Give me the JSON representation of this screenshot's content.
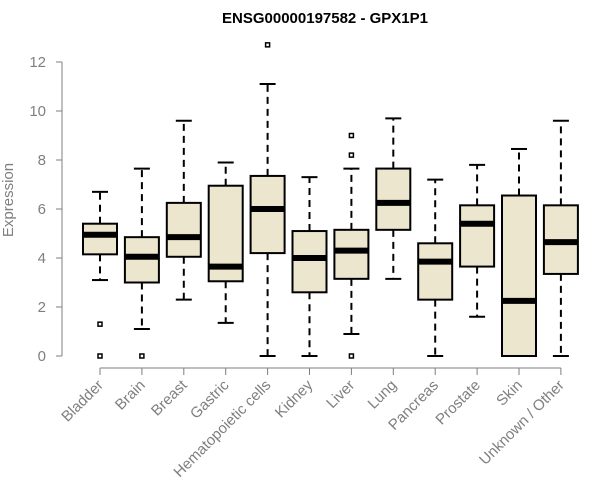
{
  "chart_data": {
    "type": "box",
    "title": "ENSG00000197582 - GPX1P1",
    "xlabel": "",
    "ylabel": "Expression",
    "ylim": [
      0,
      12.6
    ],
    "yticks": [
      0,
      2,
      4,
      6,
      8,
      10,
      12
    ],
    "grid": false,
    "box_fill": "#ede6cf",
    "box_stroke": "#000000",
    "axis_color": "#7f7f7f",
    "categories": [
      "Bladder",
      "Brain",
      "Breast",
      "Gastric",
      "Hematopoietic cells",
      "Kidney",
      "Liver",
      "Lung",
      "Pancreas",
      "Prostate",
      "Skin",
      "Unknown / Other"
    ],
    "boxes": [
      {
        "whisker_low": 3.1,
        "q1": 4.15,
        "median": 4.95,
        "q3": 5.4,
        "whisker_high": 6.7,
        "outliers": [
          1.3,
          0.0
        ]
      },
      {
        "whisker_low": 1.1,
        "q1": 3.0,
        "median": 4.05,
        "q3": 4.85,
        "whisker_high": 7.65,
        "outliers": [
          0.0
        ]
      },
      {
        "whisker_low": 2.3,
        "q1": 4.05,
        "median": 4.85,
        "q3": 6.25,
        "whisker_high": 9.6,
        "outliers": []
      },
      {
        "whisker_low": 1.35,
        "q1": 3.05,
        "median": 3.65,
        "q3": 6.95,
        "whisker_high": 7.9,
        "outliers": []
      },
      {
        "whisker_low": 0.0,
        "q1": 4.2,
        "median": 6.0,
        "q3": 7.35,
        "whisker_high": 11.1,
        "outliers": [
          12.7
        ]
      },
      {
        "whisker_low": 0.0,
        "q1": 2.6,
        "median": 4.0,
        "q3": 5.1,
        "whisker_high": 7.3,
        "outliers": []
      },
      {
        "whisker_low": 0.9,
        "q1": 3.15,
        "median": 4.3,
        "q3": 5.15,
        "whisker_high": 7.65,
        "outliers": [
          9.0,
          8.2,
          0.0
        ]
      },
      {
        "whisker_low": 3.15,
        "q1": 5.15,
        "median": 6.25,
        "q3": 7.65,
        "whisker_high": 9.7,
        "outliers": []
      },
      {
        "whisker_low": 0.0,
        "q1": 2.3,
        "median": 3.85,
        "q3": 4.6,
        "whisker_high": 7.2,
        "outliers": []
      },
      {
        "whisker_low": 1.6,
        "q1": 3.65,
        "median": 5.4,
        "q3": 6.15,
        "whisker_high": 7.8,
        "outliers": []
      },
      {
        "whisker_low": 0.0,
        "q1": 0.0,
        "median": 2.25,
        "q3": 6.55,
        "whisker_high": 8.45,
        "outliers": []
      },
      {
        "whisker_low": 0.0,
        "q1": 3.35,
        "median": 4.65,
        "q3": 6.15,
        "whisker_high": 9.6,
        "outliers": []
      }
    ]
  }
}
